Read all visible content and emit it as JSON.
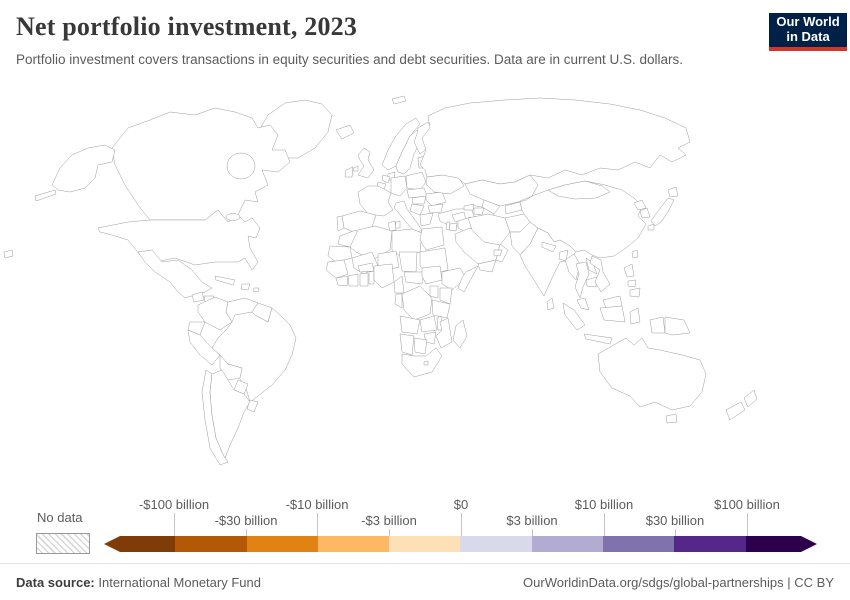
{
  "header": {
    "title": "Net portfolio investment, 2023",
    "subtitle": "Portfolio investment covers transactions in equity securities and debt securities. Data are in current U.S. dollars.",
    "logo": {
      "line1": "Our World",
      "line2": "in Data"
    }
  },
  "legend": {
    "no_data_label": "No data",
    "labels": [
      "-$100 billion",
      "-$30 billion",
      "-$10 billion",
      "-$3 billion",
      "$0",
      "$3 billion",
      "$10 billion",
      "$30 billion",
      "$100 billion"
    ],
    "colors": [
      "#7f3b08",
      "#b35806",
      "#e08214",
      "#fdb863",
      "#fee0b6",
      "#d8daeb",
      "#b2abd2",
      "#8073ac",
      "#542788",
      "#2d004b"
    ]
  },
  "footer": {
    "source_label": "Data source:",
    "source": "International Monetary Fund",
    "right": "OurWorldinData.org/sdgs/global-partnerships | CC BY"
  },
  "chart_data": {
    "type": "heatmap",
    "title": "Net portfolio investment, 2023",
    "subtitle": "Portfolio investment covers transactions in equity securities and debt securities. Data are in current U.S. dollars.",
    "legend_position": "bottom",
    "bins": [
      "-$100 billion",
      "-$30 billion",
      "-$10 billion",
      "-$3 billion",
      "$0",
      "$3 billion",
      "$10 billion",
      "$30 billion",
      "$100 billion"
    ],
    "palette": [
      "#7f3b08",
      "#b35806",
      "#e08214",
      "#fdb863",
      "#fee0b6",
      "#d8daeb",
      "#b2abd2",
      "#8073ac",
      "#542788",
      "#2d004b"
    ],
    "no_data_style": "hatched"
  },
  "map": {
    "regions": {
      "greenland": "hatch",
      "canada": "#8073ac",
      "alaska": "#7f3b08",
      "aleutians": "#7f3b08",
      "united-states": "#7f3b08",
      "mexico": "#8073ac",
      "guatemala": "#fdb863",
      "honduras": "#d8daeb",
      "nicaragua": "#fee0b6",
      "panama-costa-rica": "#fee0b6",
      "cuba": "#fee0b6",
      "hispaniola": "#fee0b6",
      "puerto-rico": "#fee0b6",
      "hudson-bay": "#ffffff",
      "great-lakes": "#ffffff",
      "colombia": "#b2abd2",
      "venezuela": "hatch",
      "guyana": "#d8daeb",
      "ecuador": "#d8daeb",
      "peru": "#b2abd2",
      "brazil": "#fdb863",
      "bolivia": "#fee0b6",
      "paraguay": "#fee0b6",
      "chile": "#d8daeb",
      "argentina": "#b2abd2",
      "uruguay": "#d8daeb",
      "pacific-islands": "hatch",
      "iceland": "#542788",
      "svalbard": "#542788",
      "norway": "#542788",
      "sweden": "#e08214",
      "finland": "#d8daeb",
      "denmark": "#e08214",
      "united-kingdom": "#2d004b",
      "northern-ireland": "#2d004b",
      "ireland": "#542788",
      "baltics": "#d8daeb",
      "belarus": "#fee0b6",
      "poland": "#b2abd2",
      "germany": "#e08214",
      "netherlands": "#e08214",
      "belgium": "#542788",
      "france": "#7f3b08",
      "spain": "#e08214",
      "portugal": "#e08214",
      "italy": "#e08214",
      "sicily": "#e08214",
      "sardinia": "#e08214",
      "czech-austria": "#d8daeb",
      "hungary": "#d8daeb",
      "romania": "#e08214",
      "balkans": "#e08214",
      "bulgaria": "#d8daeb",
      "greece": "#fdb863",
      "ukraine": "#fee0b6",
      "turkey": "#fdb863",
      "russia": "#b2abd2",
      "kazakhstan": "#ffffff",
      "uzbekistan": "#fee0b6",
      "turkmenistan": "hatch",
      "kyrgyzstan-tajikistan": "#d8daeb",
      "georgia": "#d8daeb",
      "azerbaijan": "#e08214",
      "syria": "hatch",
      "iraq": "#d8daeb",
      "jordan": "#d8daeb",
      "israel": "#fdb863",
      "saudi-arabia": "#542788",
      "yemen": "#ffffff",
      "oman": "#b2abd2",
      "uae-qatar": "#b2abd2",
      "iran": "hatch",
      "afghanistan": "hatch",
      "pakistan": "#fee0b6",
      "india": "#b35806",
      "nepal": "#fee0b6",
      "bangladesh": "#e08214",
      "sri-lanka": "#fee0b6",
      "china": "#542788",
      "mongolia": "#d8daeb",
      "north-korea": "#ffffff",
      "south-korea": "#b2abd2",
      "japan-hokkaido": "#2d004b",
      "japan-honshu": "#2d004b",
      "japan-kyushu": "#2d004b",
      "taiwan": "#542788",
      "myanmar": "hatch",
      "thailand": "#b2abd2",
      "laos": "#d8daeb",
      "cambodia": "#d8daeb",
      "vietnam": "#8073ac",
      "malaysia-peninsula": "#fee0b6",
      "malaysia-borneo": "#fee0b6",
      "sumatra": "#fee0b6",
      "java": "#fee0b6",
      "borneo": "#fee0b6",
      "sulawesi": "#fee0b6",
      "lesser-sunda": "#fee0b6",
      "west-papua": "#fee0b6",
      "papua-new-guinea": "#b2abd2",
      "luzon": "#8073ac",
      "visayas": "#8073ac",
      "mindanao": "#8073ac",
      "morocco": "#fee0b6",
      "algeria": "hatch",
      "tunisia": "#e08214",
      "libya": "hatch",
      "egypt": "#d8daeb",
      "mauritania": "hatch",
      "mali": "hatch",
      "niger": "hatch",
      "chad": "hatch",
      "sudan": "hatch",
      "senegal-guinea": "#fee0b6",
      "sierra-leone-liberia": "#ffffff",
      "ivory-coast": "#ffffff",
      "ghana": "#d8daeb",
      "togo-benin": "#b2abd2",
      "burkina-faso": "#ffffff",
      "nigeria": "#fdb863",
      "cameroon": "#d8daeb",
      "central-african-republic": "#ffffff",
      "south-sudan": "#d8daeb",
      "ethiopia": "hatch",
      "somalia": "#ffffff",
      "kenya": "#fee0b6",
      "uganda": "#d8daeb",
      "congo-gabon": "#d8daeb",
      "dr-congo": "#d8daeb",
      "tanzania": "#fee0b6",
      "angola": "#fee0b6",
      "zambia": "#fee0b6",
      "malawi": "#fee0b6",
      "mozambique": "#fee0b6",
      "zimbabwe": "#fee0b6",
      "namibia": "#d8daeb",
      "botswana": "#d8daeb",
      "south-africa": "#8073ac",
      "lesotho": "#ffffff",
      "madagascar": "hatch",
      "australia": "#8073ac",
      "tasmania": "#8073ac",
      "new-zealand-north": "#e08214",
      "new-zealand-south": "#e08214"
    }
  }
}
